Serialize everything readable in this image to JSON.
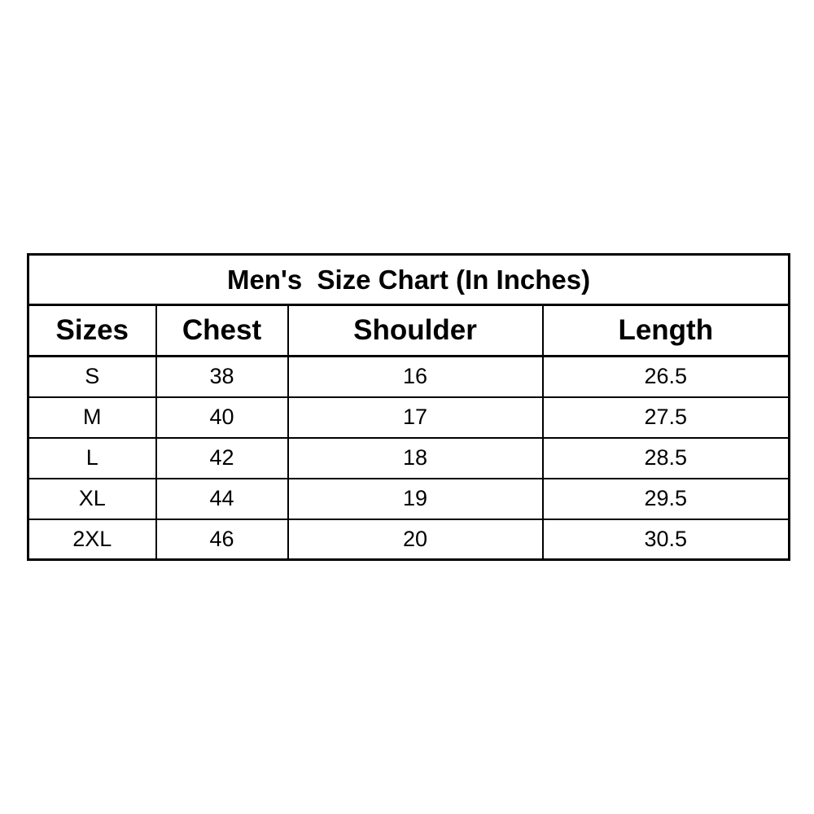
{
  "page": {
    "background": "#ffffff"
  },
  "colors": {
    "border": "#000000",
    "text": "#000000",
    "table_background": "#ffffff"
  },
  "table": {
    "title": "Men's  Size Chart (In Inches)",
    "headers": [
      "Sizes",
      "Chest",
      "Shoulder",
      "Length"
    ],
    "rows": [
      [
        "S",
        "38",
        "16",
        "26.5"
      ],
      [
        "M",
        "40",
        "17",
        "27.5"
      ],
      [
        "L",
        "42",
        "18",
        "28.5"
      ],
      [
        "XL",
        "44",
        "19",
        "29.5"
      ],
      [
        "2XL",
        "46",
        "20",
        "30.5"
      ]
    ]
  },
  "chart_data": {
    "type": "table",
    "title": "Men's  Size Chart (In Inches)",
    "columns": [
      "Sizes",
      "Chest",
      "Shoulder",
      "Length"
    ],
    "rows": [
      [
        "S",
        38,
        16,
        26.5
      ],
      [
        "M",
        40,
        17,
        27.5
      ],
      [
        "L",
        42,
        18,
        28.5
      ],
      [
        "XL",
        44,
        19,
        29.5
      ],
      [
        "2XL",
        46,
        20,
        30.5
      ]
    ],
    "units": "inches",
    "layout": {
      "grid": true,
      "header_bold": true,
      "title_row_spans_all_columns": true
    }
  }
}
